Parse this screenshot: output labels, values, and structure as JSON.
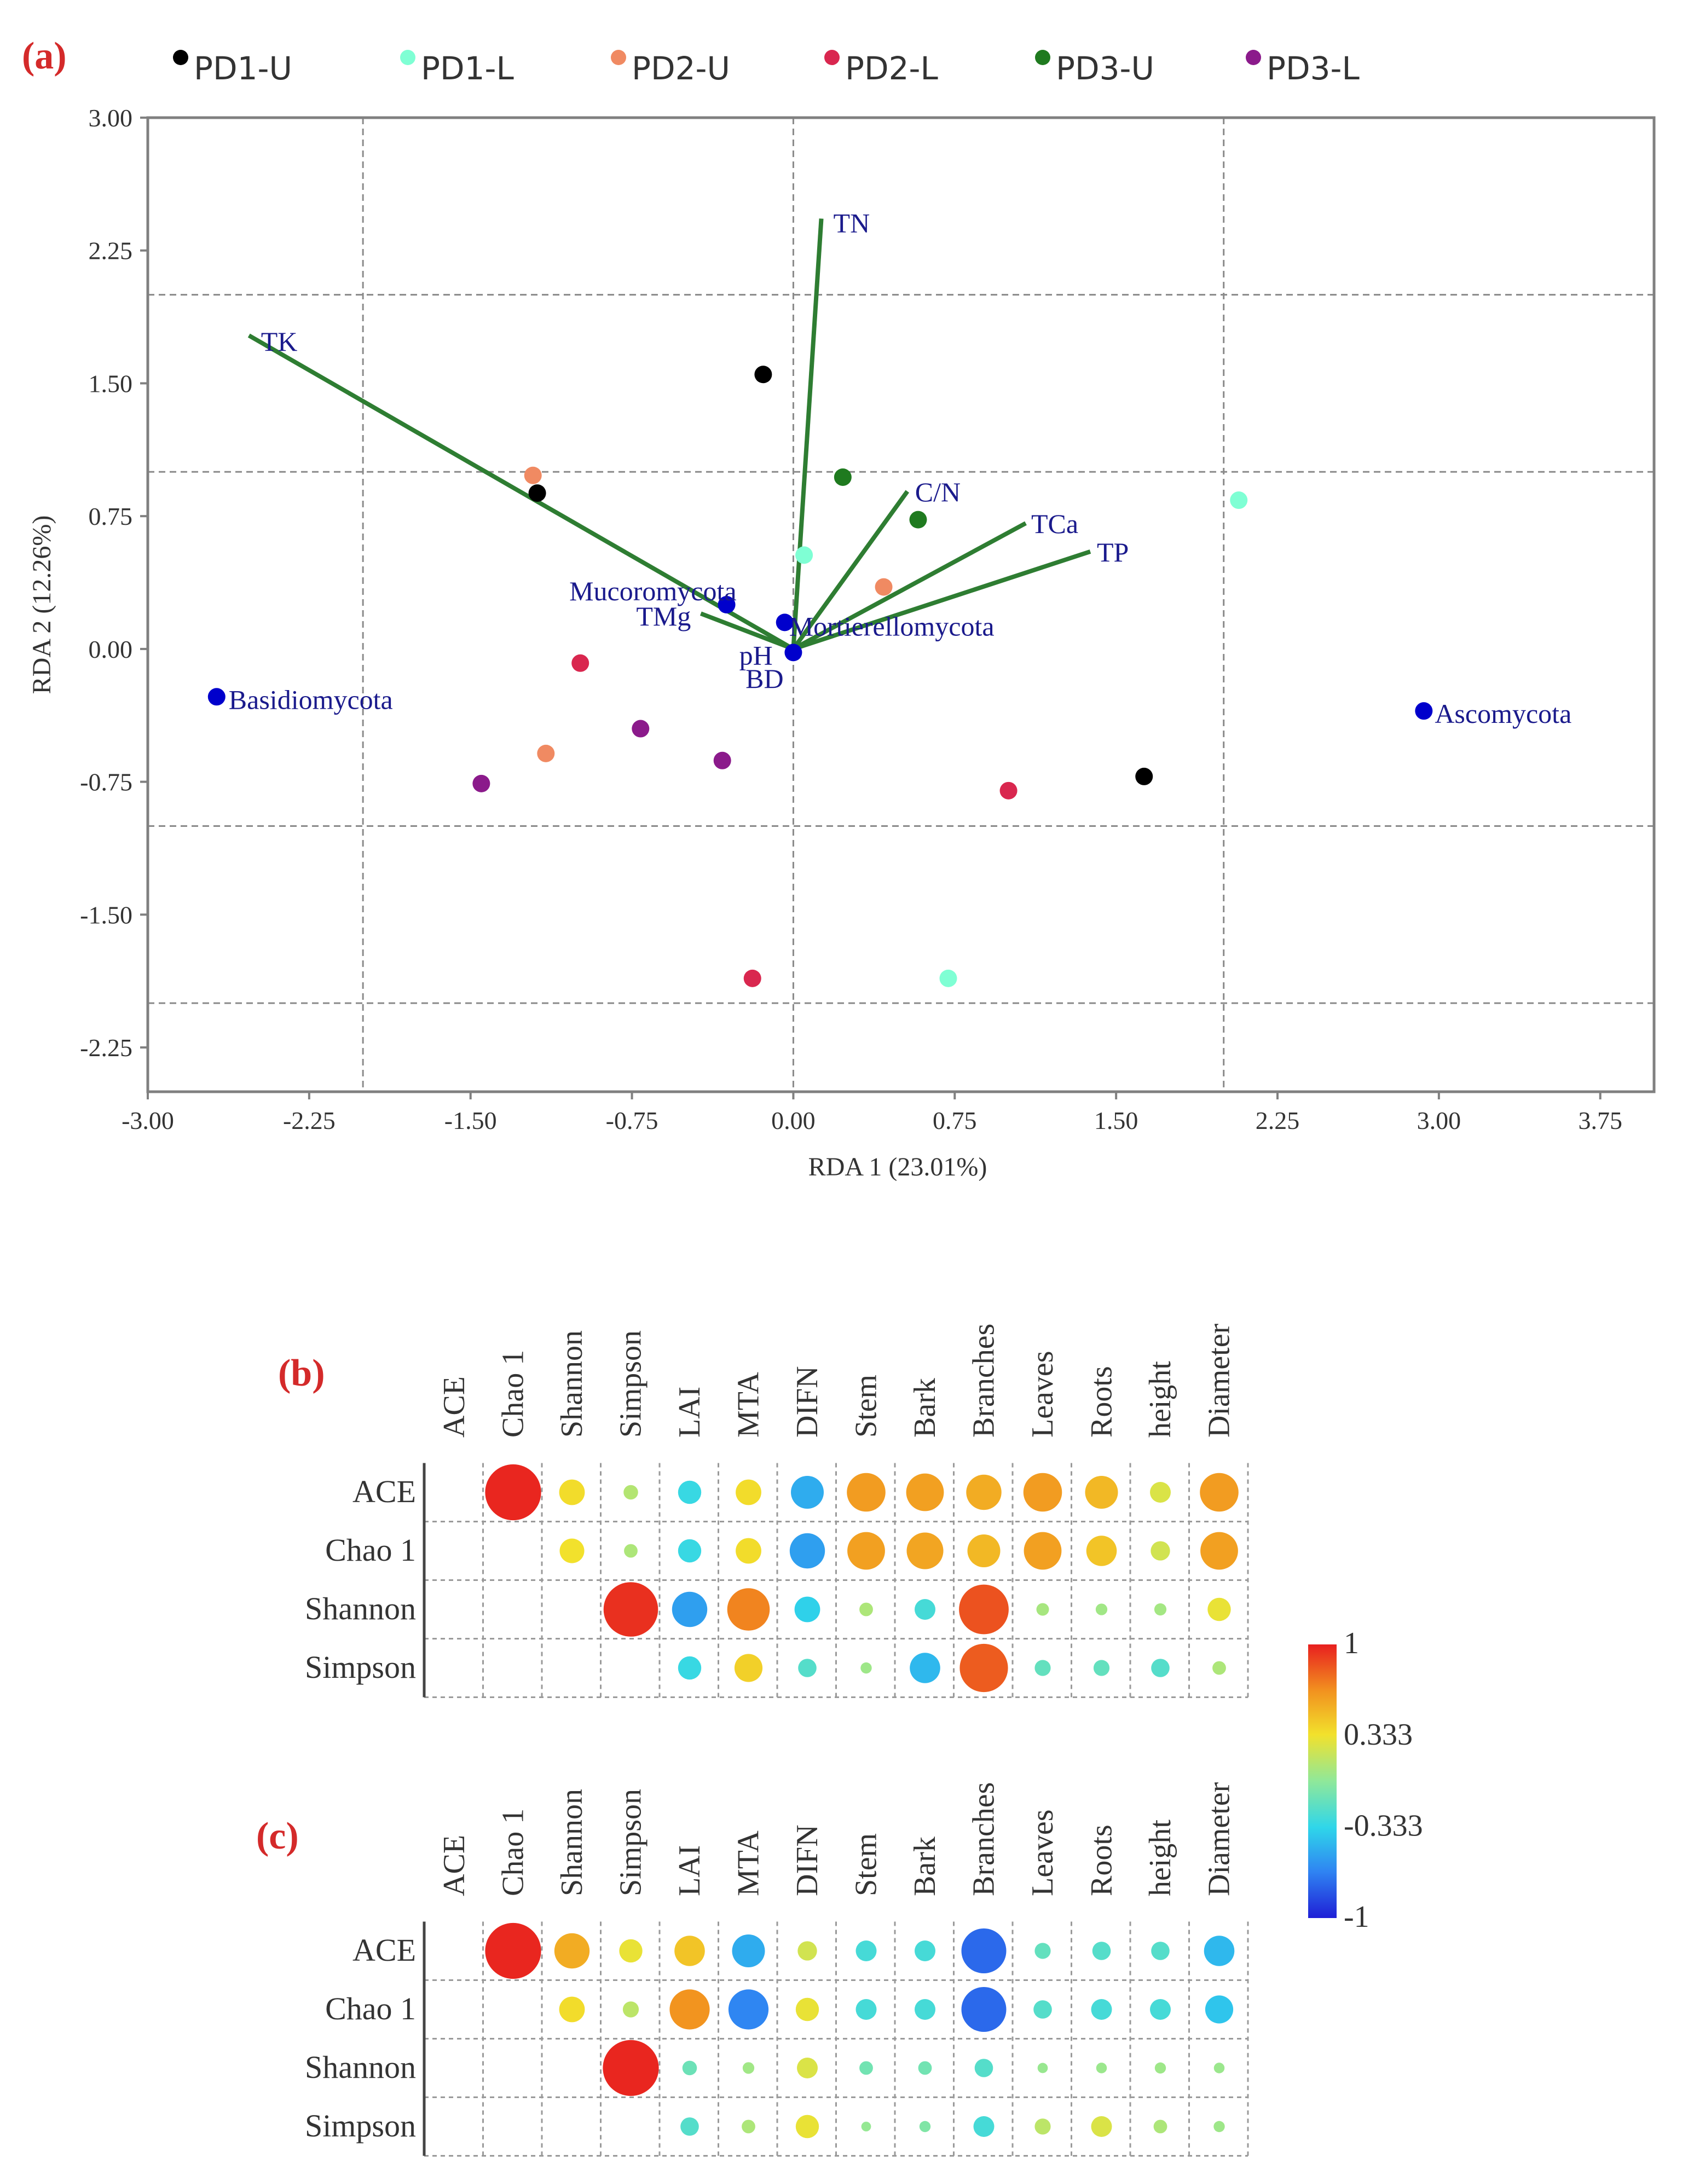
{
  "chart_data": [
    {
      "type": "scatter",
      "panel_label": "(a)",
      "xlabel": "RDA 1 (23.01%)",
      "ylabel": "RDA 2 (12.26%)",
      "xlim": [
        -3.0,
        4.0
      ],
      "ylim": [
        -2.5,
        3.0
      ],
      "xticks": [
        -3.0,
        -2.25,
        -1.5,
        -0.75,
        0.0,
        0.75,
        1.5,
        2.25,
        3.0,
        3.75
      ],
      "yticks": [
        3.0,
        2.25,
        1.5,
        0.75,
        0.0,
        -0.75,
        -1.5,
        -2.25
      ],
      "xtick_labels": [
        "-3.00",
        "-2.25",
        "-1.50",
        "-0.75",
        "0.00",
        "0.75",
        "1.50",
        "2.25",
        "3.00",
        "3.75"
      ],
      "ytick_labels": [
        "3.00",
        "2.25",
        "1.50",
        "0.75",
        "0.00",
        "-0.75",
        "-1.50",
        "-2.25"
      ],
      "grid_x": [
        -2.0,
        0.0,
        2.0
      ],
      "grid_y": [
        2.0,
        1.0,
        -1.0,
        -2.0
      ],
      "legend": [
        {
          "name": "PD1-U",
          "color": "#000000"
        },
        {
          "name": "PD1-L",
          "color": "#7fffd4"
        },
        {
          "name": "PD2-U",
          "color": "#f08a62"
        },
        {
          "name": "PD2-L",
          "color": "#d9274f"
        },
        {
          "name": "PD3-U",
          "color": "#1f7a1f"
        },
        {
          "name": "PD3-L",
          "color": "#8b1a8b"
        }
      ],
      "samples": [
        {
          "group": "PD1-U",
          "x": -0.14,
          "y": 1.55
        },
        {
          "group": "PD1-U",
          "x": -1.19,
          "y": 0.88
        },
        {
          "group": "PD1-U",
          "x": 1.63,
          "y": -0.72
        },
        {
          "group": "PD1-L",
          "x": 2.07,
          "y": 0.84
        },
        {
          "group": "PD1-L",
          "x": 0.05,
          "y": 0.53
        },
        {
          "group": "PD1-L",
          "x": 0.72,
          "y": -1.86
        },
        {
          "group": "PD2-U",
          "x": -1.21,
          "y": 0.98
        },
        {
          "group": "PD2-U",
          "x": 0.42,
          "y": 0.35
        },
        {
          "group": "PD2-U",
          "x": -1.15,
          "y": -0.59
        },
        {
          "group": "PD2-L",
          "x": -0.99,
          "y": -0.08
        },
        {
          "group": "PD2-L",
          "x": 1.0,
          "y": -0.8
        },
        {
          "group": "PD2-L",
          "x": -0.19,
          "y": -1.86
        },
        {
          "group": "PD3-U",
          "x": 0.23,
          "y": 0.97
        },
        {
          "group": "PD3-U",
          "x": 0.58,
          "y": 0.73
        },
        {
          "group": "PD3-L",
          "x": -0.71,
          "y": -0.45
        },
        {
          "group": "PD3-L",
          "x": -0.33,
          "y": -0.63
        },
        {
          "group": "PD3-L",
          "x": -1.45,
          "y": -0.76
        }
      ],
      "taxa": [
        {
          "name": "Basidiomycota",
          "x": -2.68,
          "y": -0.27
        },
        {
          "name": "Ascomycota",
          "x": 2.93,
          "y": -0.35
        },
        {
          "name": "Mucoromycota",
          "x": -0.31,
          "y": 0.25
        },
        {
          "name": "Mortierellomycota",
          "x": -0.04,
          "y": 0.15
        },
        {
          "name": "",
          "x": 0.0,
          "y": -0.02
        }
      ],
      "arrows": [
        {
          "name": "TK",
          "x": -2.53,
          "y": 1.77
        },
        {
          "name": "TN",
          "x": 0.13,
          "y": 2.43
        },
        {
          "name": "C/N",
          "x": 0.53,
          "y": 0.89
        },
        {
          "name": "TCa",
          "x": 1.08,
          "y": 0.71
        },
        {
          "name": "TP",
          "x": 1.38,
          "y": 0.55
        },
        {
          "name": "TMg",
          "x": -0.43,
          "y": 0.2
        },
        {
          "name": "pH",
          "x": -0.04,
          "y": 0.02
        },
        {
          "name": "BD",
          "x": -0.02,
          "y": -0.05
        }
      ],
      "arrow_color": "#2e7d32",
      "taxa_color": "#0000cc",
      "label_color": "#1a1a8c"
    },
    {
      "type": "heatmap",
      "panel_label": "(b)",
      "rows": [
        "ACE",
        "Chao 1",
        "Shannon",
        "Simpson"
      ],
      "columns": [
        "ACE",
        "Chao 1",
        "Shannon",
        "Simpson",
        "LAI",
        "MTA",
        "DIFN",
        "Stem",
        "Bark",
        "Branches",
        "Leaves",
        "Roots",
        "height",
        "Diameter"
      ],
      "values": [
        [
          null,
          0.98,
          0.35,
          0.12,
          -0.3,
          0.35,
          -0.5,
          0.62,
          0.6,
          0.55,
          0.62,
          0.5,
          0.25,
          0.62
        ],
        [
          null,
          null,
          0.33,
          0.1,
          -0.3,
          0.35,
          -0.55,
          0.6,
          0.58,
          0.5,
          0.6,
          0.45,
          0.22,
          0.6
        ],
        [
          null,
          null,
          null,
          0.95,
          -0.55,
          0.7,
          -0.35,
          0.1,
          -0.25,
          0.85,
          0.08,
          0.06,
          0.07,
          0.3
        ],
        [
          null,
          null,
          null,
          null,
          -0.3,
          0.4,
          -0.2,
          0.05,
          -0.45,
          0.82,
          -0.15,
          -0.15,
          -0.2,
          0.1
        ]
      ]
    },
    {
      "type": "heatmap",
      "panel_label": "(c)",
      "rows": [
        "ACE",
        "Chao 1",
        "Shannon",
        "Simpson"
      ],
      "columns": [
        "ACE",
        "Chao 1",
        "Shannon",
        "Simpson",
        "LAI",
        "MTA",
        "DIFN",
        "Stem",
        "Bark",
        "Branches",
        "Leaves",
        "Roots",
        "height",
        "Diameter"
      ],
      "values": [
        [
          null,
          0.98,
          0.55,
          0.3,
          0.45,
          -0.5,
          0.22,
          -0.25,
          -0.25,
          -0.75,
          -0.15,
          -0.2,
          -0.2,
          -0.45
        ],
        [
          null,
          null,
          0.35,
          0.15,
          0.65,
          -0.65,
          0.3,
          -0.25,
          -0.25,
          -0.75,
          -0.2,
          -0.25,
          -0.25,
          -0.4
        ],
        [
          null,
          null,
          null,
          0.98,
          -0.12,
          0.06,
          0.25,
          -0.1,
          -0.1,
          -0.2,
          0.03,
          0.04,
          0.05,
          0.04
        ],
        [
          null,
          null,
          null,
          null,
          -0.2,
          0.1,
          0.3,
          0.02,
          -0.05,
          -0.25,
          0.15,
          0.25,
          0.1,
          0.05
        ]
      ]
    }
  ],
  "colorbar": {
    "tick_labels": [
      "1",
      "0.333",
      "-0.333",
      "-1"
    ],
    "ticks": [
      1,
      0.333,
      -0.333,
      -1
    ]
  }
}
